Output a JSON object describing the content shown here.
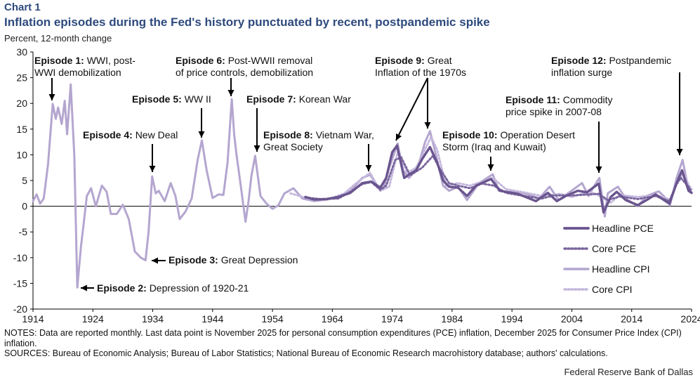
{
  "header": {
    "chart_label": "Chart 1",
    "title": "Inflation episodes during the Fed's history punctuated by recent, postpandemic spike",
    "y_caption": "Percent, 12-month change"
  },
  "footer": {
    "notes": "NOTES: Data are reported monthly. Last data point is November 2025 for personal consumption expenditures (PCE) inflation, December 2025 for Consumer Price Index (CPI) inflation.",
    "sources": "SOURCES: Bureau of Economic Analysis; Bureau of Labor Statistics; National Bureau of Economic Research macrohistory database; authors' calculations.",
    "org": "Federal Reserve Bank of Dallas"
  },
  "colors": {
    "headline_pce": "#6a558f",
    "core_pce": "#7a669e",
    "headline_cpi": "#b4a6cf",
    "core_cpi": "#c4b8dd",
    "title": "#2e4a7d"
  },
  "chart_data": {
    "type": "line",
    "ylabel": "Percent, 12-month change",
    "xlim": [
      1914,
      2024
    ],
    "ylim": [
      -20,
      30
    ],
    "x_ticks": [
      1914,
      1924,
      1934,
      1944,
      1954,
      1964,
      1974,
      1984,
      1994,
      2004,
      2014,
      2024
    ],
    "y_ticks": [
      -20,
      -15,
      -10,
      -5,
      0,
      5,
      10,
      15,
      20,
      25,
      30
    ],
    "legend_position": "right",
    "series": [
      {
        "name": "Headline PCE",
        "style": "solid-thick",
        "points": [
          [
            1959.5,
            1.8
          ],
          [
            1961,
            1.3
          ],
          [
            1963,
            1.4
          ],
          [
            1965,
            1.8
          ],
          [
            1967,
            2.6
          ],
          [
            1969,
            4.5
          ],
          [
            1970.5,
            4.8
          ],
          [
            1972,
            3.6
          ],
          [
            1973,
            5.5
          ],
          [
            1974,
            10.5
          ],
          [
            1974.8,
            11.8
          ],
          [
            1976,
            5.5
          ],
          [
            1977,
            6.3
          ],
          [
            1978,
            7.0
          ],
          [
            1979,
            9.2
          ],
          [
            1980.3,
            11.5
          ],
          [
            1981.5,
            8.5
          ],
          [
            1982.5,
            5.0
          ],
          [
            1983.5,
            3.8
          ],
          [
            1985,
            3.6
          ],
          [
            1986.5,
            2.0
          ],
          [
            1988,
            4.0
          ],
          [
            1990.5,
            5.3
          ],
          [
            1992,
            3.0
          ],
          [
            1995,
            2.4
          ],
          [
            1998,
            1.0
          ],
          [
            2000,
            2.6
          ],
          [
            2001.5,
            1.0
          ],
          [
            2003,
            2.0
          ],
          [
            2005,
            3.0
          ],
          [
            2006.5,
            2.7
          ],
          [
            2008.5,
            4.4
          ],
          [
            2009.3,
            -1.2
          ],
          [
            2010.5,
            1.8
          ],
          [
            2011.5,
            2.8
          ],
          [
            2013,
            1.2
          ],
          [
            2015,
            0.2
          ],
          [
            2016.5,
            1.2
          ],
          [
            2018,
            2.3
          ],
          [
            2020.3,
            0.5
          ],
          [
            2021.5,
            4.5
          ],
          [
            2022.4,
            7.0
          ],
          [
            2023.5,
            3.0
          ],
          [
            2024,
            2.6
          ]
        ]
      },
      {
        "name": "Core PCE",
        "style": "dotted",
        "points": [
          [
            1959.5,
            1.7
          ],
          [
            1962,
            1.4
          ],
          [
            1965,
            1.5
          ],
          [
            1967,
            2.8
          ],
          [
            1969,
            4.3
          ],
          [
            1970.5,
            4.7
          ],
          [
            1972,
            3.2
          ],
          [
            1973,
            4.0
          ],
          [
            1974.5,
            9.0
          ],
          [
            1975.5,
            9.5
          ],
          [
            1977,
            6.0
          ],
          [
            1979,
            7.5
          ],
          [
            1980.8,
            9.8
          ],
          [
            1982,
            7.2
          ],
          [
            1983.5,
            4.5
          ],
          [
            1985,
            4.0
          ],
          [
            1987,
            3.5
          ],
          [
            1989,
            4.4
          ],
          [
            1991,
            4.0
          ],
          [
            1993,
            2.6
          ],
          [
            1996,
            2.0
          ],
          [
            1999,
            1.5
          ],
          [
            2001,
            2.1
          ],
          [
            2004,
            2.1
          ],
          [
            2007,
            2.3
          ],
          [
            2008.5,
            2.4
          ],
          [
            2010,
            1.2
          ],
          [
            2012,
            1.9
          ],
          [
            2015,
            1.4
          ],
          [
            2018,
            2.0
          ],
          [
            2020.3,
            1.0
          ],
          [
            2021.5,
            4.3
          ],
          [
            2022.2,
            5.5
          ],
          [
            2023.5,
            3.8
          ],
          [
            2024,
            2.8
          ]
        ]
      },
      {
        "name": "Headline CPI",
        "style": "solid",
        "points": [
          [
            1914,
            1.0
          ],
          [
            1914.6,
            2.3
          ],
          [
            1915.2,
            0.5
          ],
          [
            1915.8,
            1.5
          ],
          [
            1916.5,
            8.0
          ],
          [
            1917.3,
            19.9
          ],
          [
            1917.8,
            17.0
          ],
          [
            1918.2,
            19.2
          ],
          [
            1918.8,
            16.0
          ],
          [
            1919.3,
            20.5
          ],
          [
            1919.7,
            14.0
          ],
          [
            1920.3,
            23.7
          ],
          [
            1920.9,
            10.0
          ],
          [
            1921.4,
            -15.8
          ],
          [
            1922,
            -8.0
          ],
          [
            1922.5,
            -3.0
          ],
          [
            1923,
            2.0
          ],
          [
            1923.7,
            3.5
          ],
          [
            1924.5,
            0.0
          ],
          [
            1925.5,
            4.0
          ],
          [
            1926.3,
            2.8
          ],
          [
            1927,
            -1.5
          ],
          [
            1928,
            -1.5
          ],
          [
            1929,
            0.3
          ],
          [
            1930,
            -2.5
          ],
          [
            1931,
            -8.8
          ],
          [
            1932,
            -10.0
          ],
          [
            1932.8,
            -10.5
          ],
          [
            1933.3,
            -5.0
          ],
          [
            1933.9,
            5.8
          ],
          [
            1934.5,
            2.5
          ],
          [
            1935,
            3.0
          ],
          [
            1936,
            1.0
          ],
          [
            1937,
            4.5
          ],
          [
            1937.8,
            2.0
          ],
          [
            1938.5,
            -2.5
          ],
          [
            1939.5,
            -1.0
          ],
          [
            1940.5,
            1.5
          ],
          [
            1941.5,
            9.0
          ],
          [
            1942.2,
            12.8
          ],
          [
            1943,
            7.0
          ],
          [
            1944,
            1.6
          ],
          [
            1945,
            2.3
          ],
          [
            1945.8,
            2.2
          ],
          [
            1946.5,
            8.5
          ],
          [
            1947.2,
            20.8
          ],
          [
            1947.6,
            14.0
          ],
          [
            1948,
            10.0
          ],
          [
            1948.7,
            4.0
          ],
          [
            1949.5,
            -3.0
          ],
          [
            1950,
            1.0
          ],
          [
            1950.5,
            6.0
          ],
          [
            1951.1,
            9.8
          ],
          [
            1952,
            2.0
          ],
          [
            1953,
            0.5
          ],
          [
            1954,
            -0.5
          ],
          [
            1955,
            0.2
          ],
          [
            1956,
            2.5
          ],
          [
            1957.5,
            3.5
          ],
          [
            1959,
            1.5
          ],
          [
            1961,
            1.0
          ],
          [
            1963,
            1.3
          ],
          [
            1965,
            1.8
          ],
          [
            1967,
            2.9
          ],
          [
            1969,
            5.5
          ],
          [
            1970.3,
            6.1
          ],
          [
            1971.5,
            4.0
          ],
          [
            1972.5,
            3.3
          ],
          [
            1973.5,
            7.5
          ],
          [
            1974.9,
            12.2
          ],
          [
            1975.8,
            7.0
          ],
          [
            1976.8,
            5.5
          ],
          [
            1977.5,
            6.5
          ],
          [
            1978.5,
            8.5
          ],
          [
            1979.5,
            12.5
          ],
          [
            1980.3,
            14.6
          ],
          [
            1981.3,
            10.0
          ],
          [
            1982.5,
            4.0
          ],
          [
            1983.5,
            3.0
          ],
          [
            1985,
            3.8
          ],
          [
            1986.5,
            1.2
          ],
          [
            1988.5,
            4.5
          ],
          [
            1990.8,
            6.2
          ],
          [
            1991.8,
            3.0
          ],
          [
            1993,
            2.8
          ],
          [
            1995,
            2.8
          ],
          [
            1997,
            2.2
          ],
          [
            1998.5,
            1.5
          ],
          [
            2000.3,
            3.8
          ],
          [
            2001.8,
            1.2
          ],
          [
            2003,
            2.2
          ],
          [
            2005.7,
            4.5
          ],
          [
            2006.8,
            2.0
          ],
          [
            2007.5,
            3.5
          ],
          [
            2008.6,
            5.5
          ],
          [
            2009.5,
            -2.0
          ],
          [
            2010,
            2.5
          ],
          [
            2011.7,
            3.8
          ],
          [
            2013,
            1.5
          ],
          [
            2015,
            0.0
          ],
          [
            2016.5,
            2.0
          ],
          [
            2018.5,
            2.9
          ],
          [
            2019.5,
            1.8
          ],
          [
            2020.4,
            0.2
          ],
          [
            2021.5,
            5.5
          ],
          [
            2022.5,
            9.0
          ],
          [
            2023.5,
            3.2
          ],
          [
            2024,
            2.7
          ]
        ]
      },
      {
        "name": "Core CPI",
        "style": "dotted",
        "points": [
          [
            1957,
            2.5
          ],
          [
            1960,
            1.5
          ],
          [
            1963,
            1.2
          ],
          [
            1966,
            2.5
          ],
          [
            1968,
            4.5
          ],
          [
            1970.3,
            6.5
          ],
          [
            1972,
            3.0
          ],
          [
            1973.5,
            3.8
          ],
          [
            1975,
            11.0
          ],
          [
            1976.5,
            6.5
          ],
          [
            1978,
            7.5
          ],
          [
            1980.5,
            13.5
          ],
          [
            1981.5,
            11.0
          ],
          [
            1983,
            4.0
          ],
          [
            1985,
            4.5
          ],
          [
            1987,
            4.0
          ],
          [
            1990.8,
            5.5
          ],
          [
            1993,
            3.3
          ],
          [
            1996,
            2.7
          ],
          [
            1999,
            2.0
          ],
          [
            2002,
            2.4
          ],
          [
            2004,
            1.8
          ],
          [
            2006.8,
            2.8
          ],
          [
            2008,
            2.4
          ],
          [
            2010.5,
            0.7
          ],
          [
            2012,
            2.2
          ],
          [
            2015,
            1.8
          ],
          [
            2018,
            2.2
          ],
          [
            2020.4,
            1.3
          ],
          [
            2021.5,
            4.5
          ],
          [
            2022.7,
            6.6
          ],
          [
            2023.5,
            4.2
          ],
          [
            2024,
            3.3
          ]
        ]
      }
    ],
    "annotations": [
      {
        "bold": "Episode 1:",
        "text": [
          "WWI, post-",
          "WWI demobilization"
        ]
      },
      {
        "bold": "Episode 2:",
        "text": [
          "Depression of 1920-21"
        ]
      },
      {
        "bold": "Episode 3:",
        "text": [
          "Great Depression"
        ]
      },
      {
        "bold": "Episode 4:",
        "text": [
          "New Deal"
        ]
      },
      {
        "bold": "Episode 5:",
        "text": [
          "WW II"
        ]
      },
      {
        "bold": "Episode 6:",
        "text": [
          "Post-WWII removal",
          "of price controls, demobilization"
        ]
      },
      {
        "bold": "Episode 7:",
        "text": [
          "Korean War"
        ]
      },
      {
        "bold": "Episode 8:",
        "text": [
          "Vietnam War,",
          "Great Society"
        ]
      },
      {
        "bold": "Episode 9:",
        "text": [
          "Great",
          "Inflation of the 1970s"
        ]
      },
      {
        "bold": "Episode 10:",
        "text": [
          "Operation Desert",
          "Storm (Iraq and Kuwait)"
        ]
      },
      {
        "bold": "Episode 11:",
        "text": [
          "Commodity",
          "price spike in 2007-08"
        ]
      },
      {
        "bold": "Episode 12:",
        "text": [
          "Postpandemic",
          "inflation surge"
        ]
      }
    ]
  }
}
